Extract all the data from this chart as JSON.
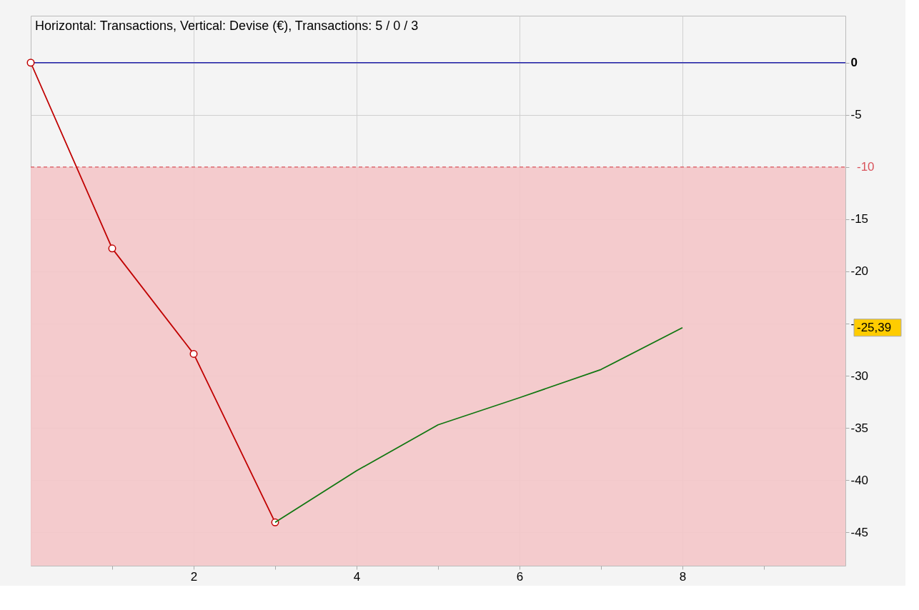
{
  "chart_data": {
    "type": "line",
    "title": "Horizontal: Transactions, Vertical: Devise (€), Transactions: 5 / 0 / 3",
    "series": [
      {
        "color": "#c00000",
        "marker": "circle",
        "x": [
          0,
          1,
          2,
          3
        ],
        "values": [
          0,
          -17.8,
          -27.9,
          -44.05
        ]
      },
      {
        "color": "#117711",
        "marker": "none",
        "x": [
          3,
          4,
          5,
          6,
          7,
          8
        ],
        "values": [
          -44.05,
          -39.1,
          -34.7,
          -32.1,
          -29.4,
          -25.39
        ]
      }
    ],
    "xlim": [
      0,
      10
    ],
    "ylim": [
      -48.2,
      4.5
    ],
    "xticks": [
      {
        "value": 1,
        "label": null
      },
      2,
      {
        "value": 3,
        "label": null
      },
      4,
      {
        "value": 5,
        "label": null
      },
      6,
      {
        "value": 7,
        "label": null
      },
      8,
      {
        "value": 9,
        "label": null
      }
    ],
    "yticks": [
      0,
      -5,
      {
        "value": -10,
        "label": null
      },
      -15,
      -20,
      -25,
      -30,
      -35,
      -40,
      -45
    ],
    "grid": true,
    "ref_lines": [
      {
        "axis": "y",
        "value": 0,
        "color": "#2222aa",
        "line_style": "solid"
      },
      {
        "axis": "y",
        "value": -10,
        "label": "-10",
        "color": "#d9535b",
        "line_style": "dashed"
      }
    ],
    "bands": [
      {
        "axis": "y",
        "from": -10,
        "to": -48.2,
        "color": "#f4c7c9"
      }
    ],
    "annotations": [
      "-25,39"
    ]
  }
}
